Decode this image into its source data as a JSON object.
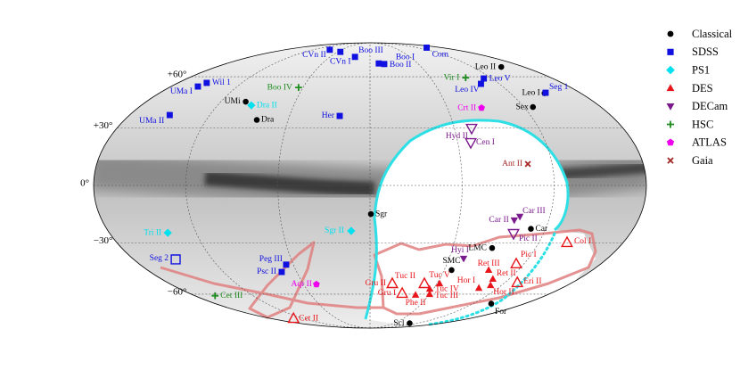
{
  "chart_data": {
    "type": "scatter",
    "projection": "mollweide",
    "xlim": [
      -180,
      180
    ],
    "ylim": [
      -90,
      90
    ],
    "xticks": [
      -120,
      -60,
      0,
      60,
      120
    ],
    "yticks": [
      {
        "value": 60,
        "label": "+60°"
      },
      {
        "value": 30,
        "label": "+30°"
      },
      {
        "value": 0,
        "label": "0°"
      },
      {
        "value": -30,
        "label": "−30°"
      },
      {
        "value": -60,
        "label": "−60°"
      }
    ],
    "grid": true,
    "legend": "upper right",
    "series": [
      {
        "name": "Classical",
        "color": "#000000",
        "marker": "circle",
        "labels": [
          "Leo II",
          "Leo I",
          "Sex",
          "UMi",
          "Dra",
          "Sgr",
          "Car",
          "LMC",
          "SMC",
          "For",
          "Scl"
        ],
        "x": [
          153.5,
          149,
          127,
          -100,
          -83,
          0.6,
          110,
          88.5,
          66,
          141,
          100
        ],
        "y": [
          66.7,
          49.6,
          41.5,
          44.6,
          34.3,
          -14.7,
          -22.4,
          -32.7,
          -45.1,
          -66.5,
          -83
        ]
      },
      {
        "name": "SDSS",
        "color": "#1010e0",
        "marker": "square",
        "labels": [
          "CVn II",
          "CVn I",
          "Boo III",
          "Boo I",
          "Boo II",
          "Com",
          "Wil 1",
          "UMa I",
          "UMa II",
          "Her",
          "Leo V",
          "Leo IV",
          "Seg 1",
          "Peg III",
          "Psc II",
          "Seg 2"
        ],
        "x": [
          -85,
          -55,
          -22.6,
          11,
          17.6,
          143,
          -153,
          -155.6,
          -150,
          -22.6,
          112,
          103,
          150.5,
          -65.7,
          -72.3,
          -148
        ],
        "y": [
          80.8,
          78.8,
          74.4,
          69.3,
          68.8,
          83,
          56,
          53.7,
          37,
          36.5,
          58.8,
          55.4,
          49.9,
          -42,
          -46.2,
          -39
        ],
        "hollow": [
          false,
          false,
          false,
          false,
          false,
          false,
          false,
          false,
          false,
          false,
          false,
          false,
          false,
          false,
          false,
          true
        ]
      },
      {
        "name": "PS1",
        "color": "#00e0ee",
        "marker": "diamond",
        "labels": [
          "Dra II",
          "Tri II",
          "Sgr II"
        ],
        "x": [
          -93.4,
          -139.6,
          -12.9
        ],
        "y": [
          42.5,
          -24.5,
          -23.5
        ]
      },
      {
        "name": "DES",
        "color": "#e8161b",
        "marker": "triangle-up",
        "labels": [
          "Col I",
          "Pic I",
          "Ret III",
          "Ret II",
          "Eri II",
          "Hor II",
          "Hor I",
          "Tuc II",
          "Tuc V",
          "Tuc IV",
          "Tuc III",
          "Phe II",
          "Gru I",
          "Gru II",
          "Cet II"
        ],
        "x": [
          140,
          114,
          96,
          106,
          131,
          110,
          102,
          48.8,
          62.4,
          56.5,
          60,
          46.3,
          32,
          20,
          -138
        ],
        "y": [
          -29.7,
          -41.5,
          -45.1,
          -50.4,
          -52.6,
          -54.3,
          -56,
          -53.2,
          -53.2,
          -56.6,
          -60,
          -60.5,
          -59.4,
          -53.2,
          -78.3
        ],
        "hollow": [
          true,
          true,
          false,
          false,
          true,
          false,
          false,
          true,
          false,
          false,
          false,
          false,
          true,
          true,
          true
        ]
      },
      {
        "name": "DECam",
        "color": "#7a1a8c",
        "marker": "triangle-down",
        "labels": [
          "Hyd II",
          "Cen I",
          "Car II",
          "Car III",
          "Pic II",
          "Hyi I"
        ],
        "x": [
          72.2,
          68.8,
          96.9,
          100,
          99.3,
          71
        ],
        "y": [
          29.7,
          22.1,
          -17.9,
          -16,
          -24.9,
          -38.5
        ],
        "hollow": [
          true,
          true,
          false,
          false,
          true,
          false
        ]
      },
      {
        "name": "HSC",
        "color": "#1e8c1e",
        "marker": "plus",
        "labels": [
          "Boo IV",
          "Vir I",
          "Cet III"
        ],
        "x": [
          -64,
          95,
          -159
        ],
        "y": [
          53.1,
          59.3,
          -61
        ]
      },
      {
        "name": "ATLAS",
        "color": "#ee00ee",
        "marker": "pentagon",
        "labels": [
          "Crt II",
          "Aqr II"
        ],
        "x": [
          86.5,
          -48.4
        ],
        "y": [
          41,
          -53.7
        ]
      },
      {
        "name": "Gaia",
        "color": "#a52a2a",
        "marker": "x",
        "labels": [
          "Ant II"
        ],
        "x": [
          104
        ],
        "y": [
          11
        ]
      }
    ]
  }
}
